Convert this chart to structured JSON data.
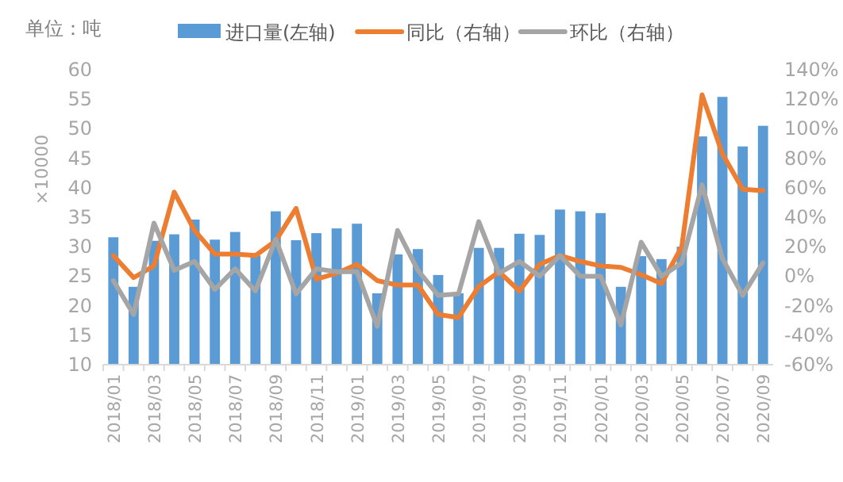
{
  "chart_data": {
    "type": "bar",
    "ylabel": "×10000",
    "annotations": [
      "单位：吨"
    ],
    "categories": [
      "2018/01",
      null,
      "2018/03",
      null,
      "2018/05",
      null,
      "2018/07",
      null,
      "2018/09",
      null,
      "2018/11",
      null,
      "2019/01",
      null,
      "2019/03",
      null,
      "2019/05",
      null,
      "2019/07",
      null,
      "2019/09",
      null,
      "2019/11",
      null,
      "2020/01",
      null,
      "2020/03",
      null,
      "2020/05",
      null,
      "2020/07",
      null,
      "2020/09"
    ],
    "series": [
      {
        "name": "进口量(左轴)",
        "color": "#5b9bd5",
        "values": [
          31.6,
          23.2,
          31,
          32.1,
          34.6,
          31.2,
          32.5,
          28.5,
          36,
          31.1,
          32.3,
          33.1,
          33.9,
          22.1,
          28.7,
          29.6,
          25.2,
          22.1,
          29.8,
          29.8,
          32.2,
          32,
          36.3,
          36,
          35.7,
          23.2,
          28.4,
          27.9,
          30,
          48.7,
          55.4,
          47,
          50.5
        ]
      },
      {
        "name": "同比（右轴）",
        "type": "line",
        "axis": "y2",
        "color": "#ed7d31",
        "values": [
          14,
          -1,
          7,
          57,
          31,
          15,
          15,
          14,
          24,
          46,
          -2,
          2,
          8,
          -3,
          -6,
          -6,
          -26,
          -28,
          -7,
          3,
          -10,
          8,
          14,
          10,
          7,
          6,
          1,
          -5,
          20,
          123,
          83,
          59,
          58
        ]
      },
      {
        "name": "环比（右轴）",
        "type": "line",
        "axis": "y2",
        "color": "#a5a5a5",
        "values": [
          -3,
          -26,
          36,
          4,
          10,
          -9,
          5,
          -10,
          25,
          -12,
          5,
          3,
          3,
          -34,
          31,
          4,
          -13,
          -12,
          37,
          2,
          10,
          0,
          14,
          0,
          0,
          -33,
          23,
          0,
          9,
          62,
          12,
          -13,
          9
        ]
      }
    ],
    "ylim": [
      10,
      60
    ],
    "yticks": [
      10,
      15,
      20,
      25,
      30,
      35,
      40,
      45,
      50,
      55,
      60
    ],
    "y2lim": [
      -60,
      140
    ],
    "y2ticks": [
      {
        "value": -60,
        "label": "-60%"
      },
      {
        "value": -40,
        "label": "-40%"
      },
      {
        "value": -20,
        "label": "-20%"
      },
      {
        "value": 0,
        "label": "0%"
      },
      {
        "value": 20,
        "label": "20%"
      },
      {
        "value": 40,
        "label": "40%"
      },
      {
        "value": 60,
        "label": "60%"
      },
      {
        "value": 80,
        "label": "80%"
      },
      {
        "value": 100,
        "label": "100%"
      },
      {
        "value": 120,
        "label": "120%"
      },
      {
        "value": 140,
        "label": "140%"
      }
    ],
    "legend": "top",
    "grid": false,
    "marker": "none",
    "line_style": "solid"
  }
}
